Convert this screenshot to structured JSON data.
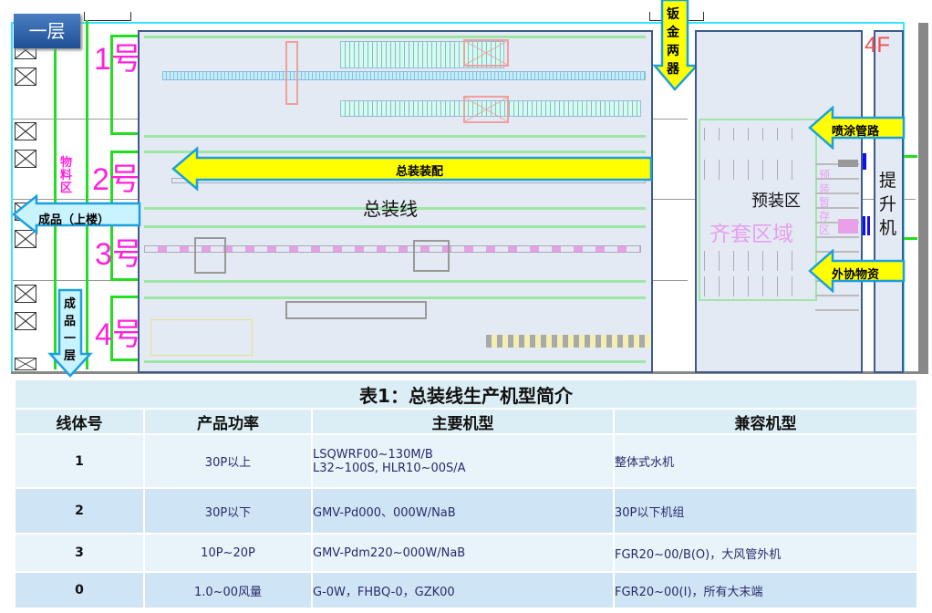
{
  "floor_badge": "一层",
  "layout": {
    "lines": [
      {
        "label": "1号"
      },
      {
        "label": "2号"
      },
      {
        "label": "3号"
      },
      {
        "label": "4号"
      }
    ],
    "material_area": "物料区",
    "assembly_line": "总装线",
    "assembly_arrow": "总装装配",
    "finished_up_arrow": "成品（上楼）",
    "finished_down_arrow": "成品一层",
    "sheet_metal_arrow": "钣金两器",
    "preassembly_zone": "预装区",
    "kitting_zone": "齐套区域",
    "preassembly_storage": "预装暂存区",
    "paint_arrow": "喷涂管路",
    "outsourced_arrow": "外协物资",
    "elevator": "提升机",
    "floor_mark": "4F",
    "colors": {
      "arrow_yellow": "#ffff00",
      "arrow_cyan": "#c9f3ff",
      "zone_border": "#3d5a8a",
      "line_label": "#ff22dd",
      "green_line": "#22dd22"
    }
  },
  "table": {
    "title": "表1：总装线生产机型简介",
    "headers": [
      "线体号",
      "产品功率",
      "主要机型",
      "兼容机型"
    ],
    "rows": [
      {
        "line": "1",
        "power": "30P以上",
        "main": "LSQWRF00~130M/B",
        "main2": "L32~100S, HLR10~00S/A",
        "compat": "整体式水机"
      },
      {
        "line": "2",
        "power": "30P以下",
        "main": "GMV-Pd000、000W/NaB",
        "main2": "",
        "compat": "30P以下机组"
      },
      {
        "line": "3",
        "power": "10P~20P",
        "main": "GMV-Pdm220~000W/NaB",
        "main2": "",
        "compat": "FGR20~00/B(O)，大风管外机"
      },
      {
        "line": "0",
        "power": "1.0~00风量",
        "main": "G-0W，FHBQ-0，GZK00",
        "main2": "",
        "compat": "FGR20~00(I)，所有大末端"
      }
    ]
  }
}
